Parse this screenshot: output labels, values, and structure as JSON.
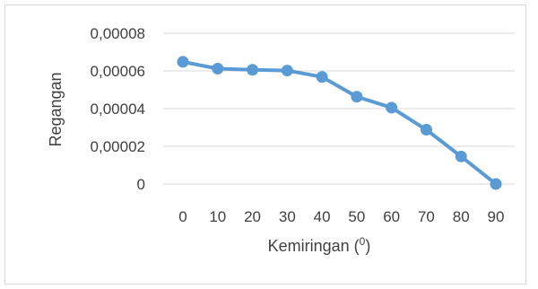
{
  "chart_data": {
    "type": "line",
    "xlabel": "Kemiringan (",
    "xlabel_superscript": "0",
    "xlabel_suffix": ")",
    "ylabel": "Regangan",
    "x": [
      0,
      10,
      20,
      30,
      40,
      50,
      60,
      70,
      80,
      90
    ],
    "series": [
      {
        "values": [
          6.48e-05,
          6.12e-05,
          6.06e-05,
          6.02e-05,
          5.68e-05,
          4.63e-05,
          4.05e-05,
          2.88e-05,
          1.46e-05,
          0.0
        ]
      }
    ],
    "ylim": [
      0,
      8e-05
    ],
    "ytick_values": [
      0,
      2e-05,
      4e-05,
      6e-05,
      8e-05
    ],
    "ytick_labels": [
      "0",
      "0,00002",
      "0,00004",
      "0,00006",
      "0,00008"
    ],
    "xtick_labels": [
      "0",
      "10",
      "20",
      "30",
      "40",
      "50",
      "60",
      "70",
      "80",
      "90"
    ],
    "grid": true,
    "legend": "none",
    "colors": {
      "series": "#5b9bd5",
      "grid": "#d9d9d9",
      "text": "#404040"
    }
  }
}
